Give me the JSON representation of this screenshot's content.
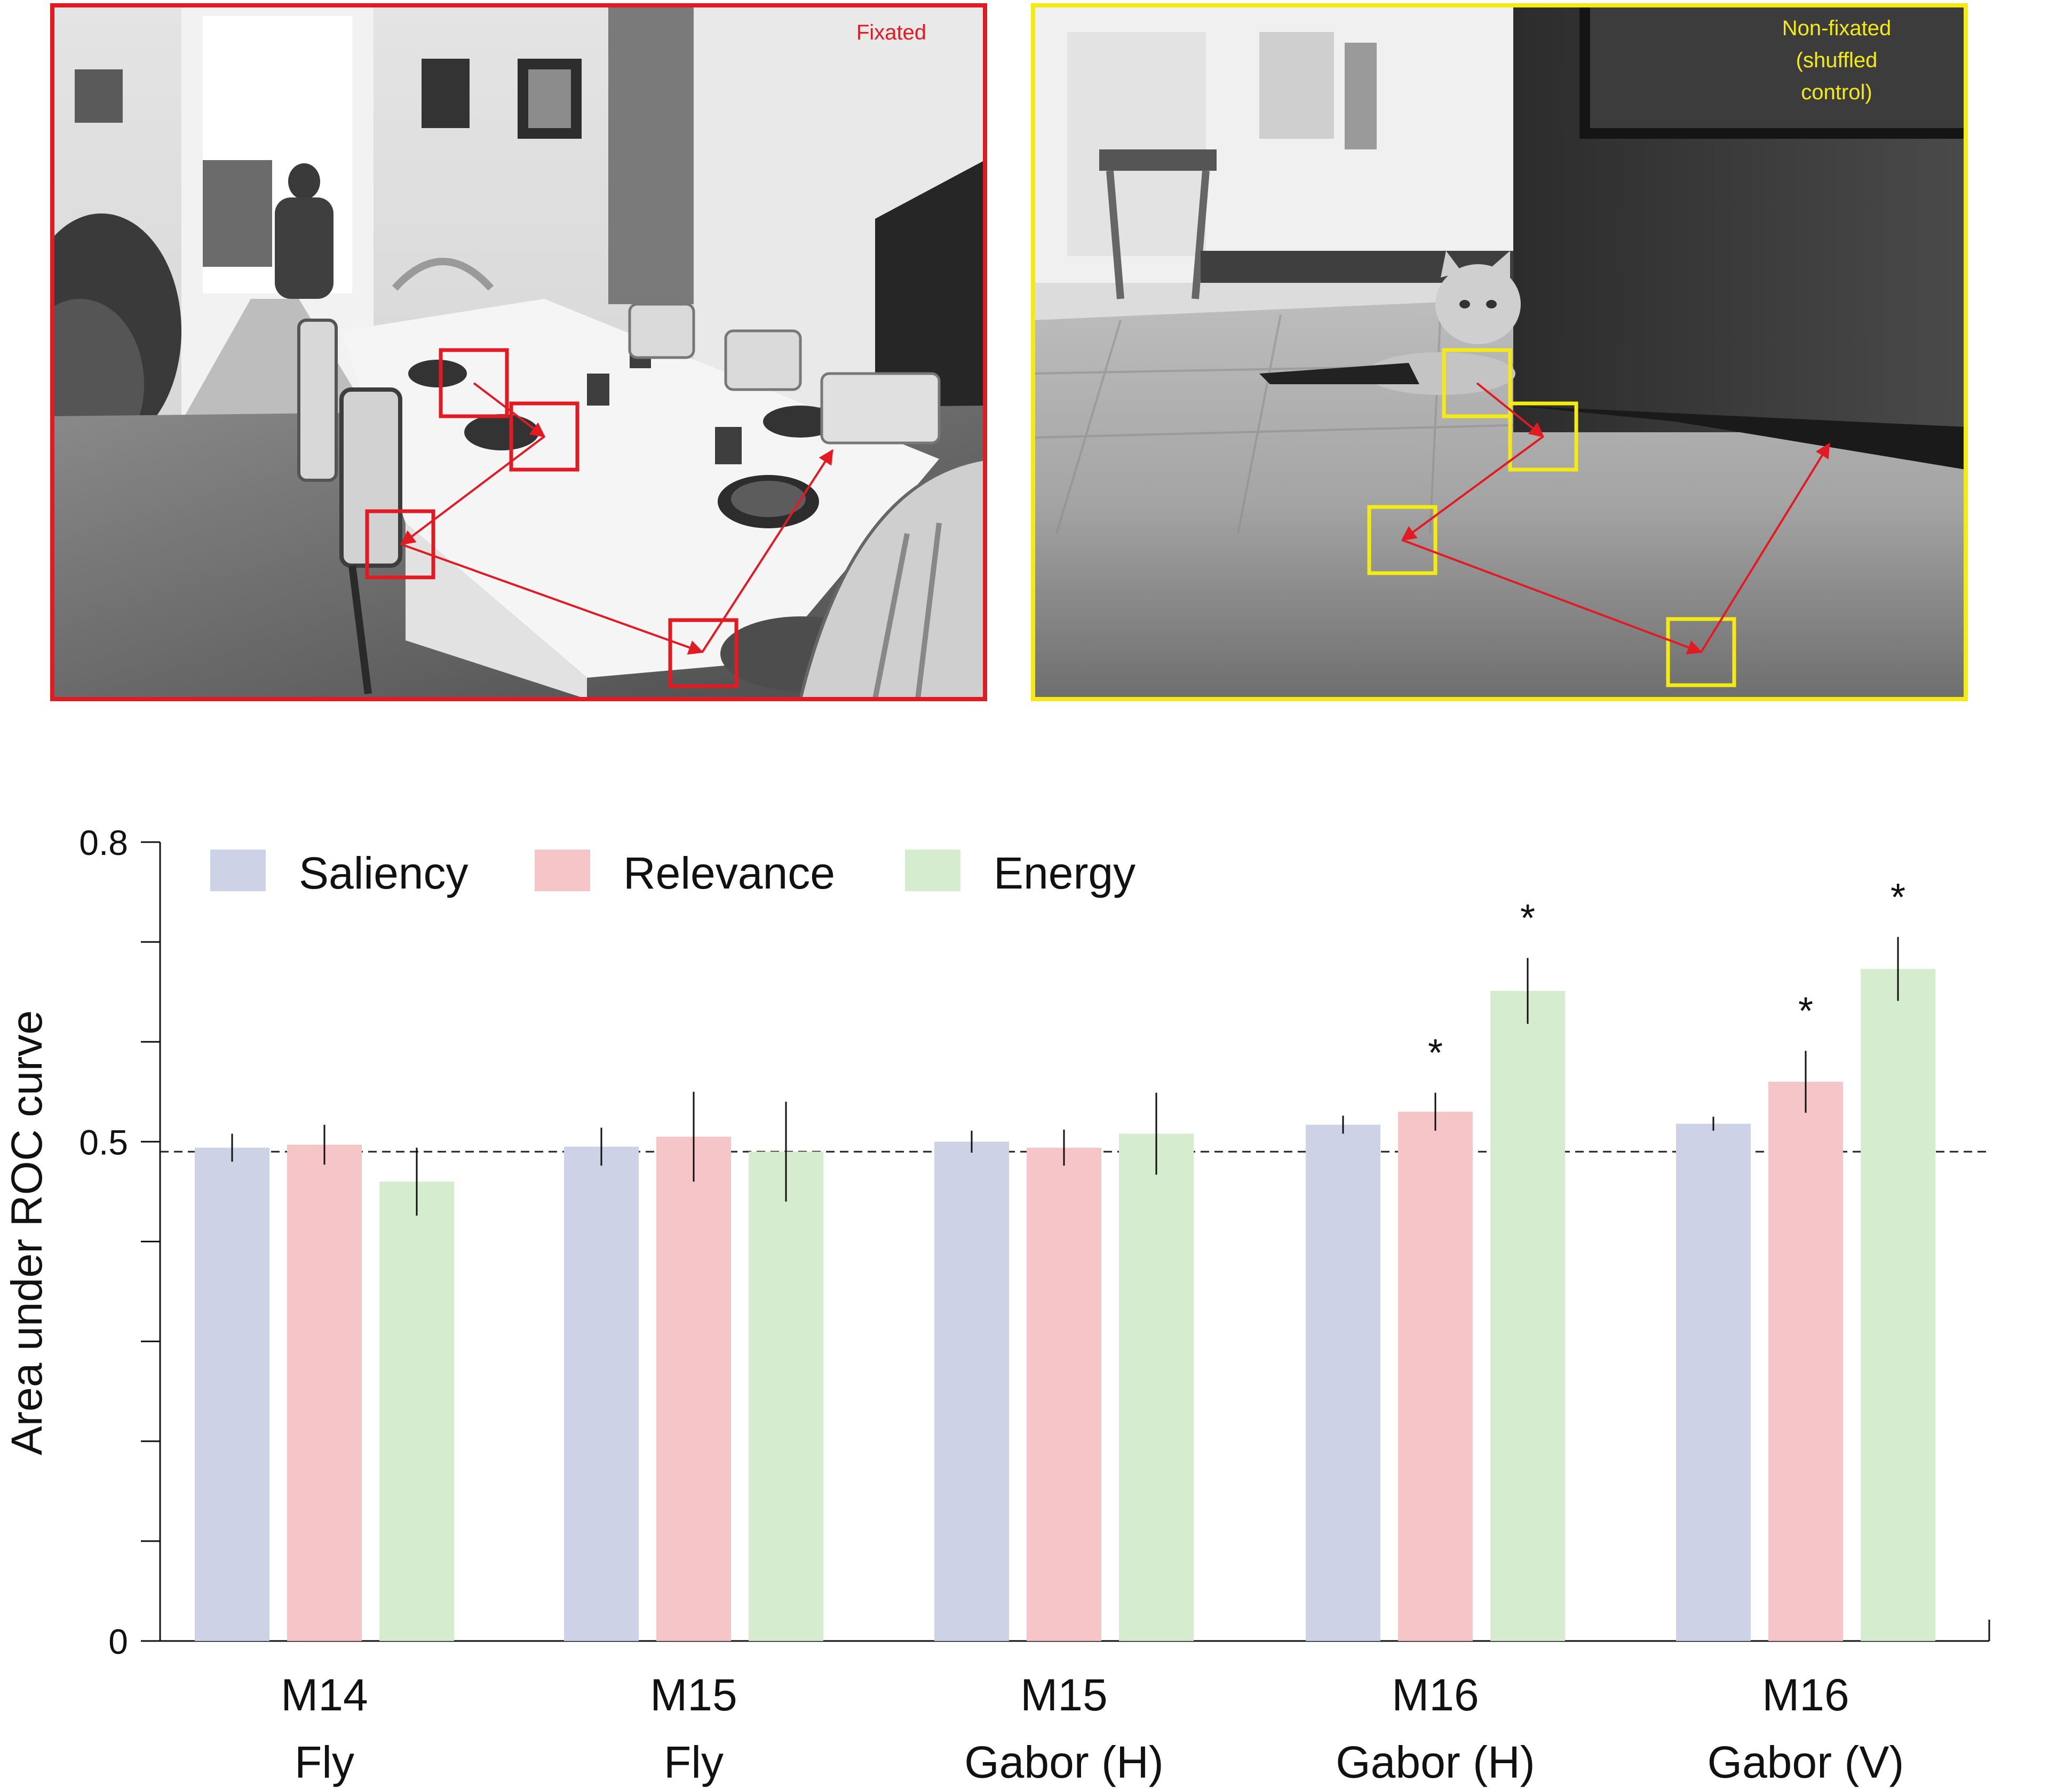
{
  "panels": [
    {
      "id": "fixated",
      "label": "Fixated",
      "border_color": "#e21b23",
      "box_color": "#e21b23",
      "scene": "dining room with set table, chairs and a man in the hallway (grayscale photo)"
    },
    {
      "id": "non_fixated",
      "label_lines": [
        "Non-fixated",
        "(shuffled",
        "control)"
      ],
      "border_color": "#f5ea14",
      "box_color": "#f5ea14",
      "scene": "kitten peeking from behind a dark wooden door on a tiled floor (grayscale photo)"
    }
  ],
  "arrow_color": "#e21b23",
  "chart_data": {
    "type": "bar",
    "ylabel": "Area under ROC curve",
    "ylim": [
      0,
      0.8
    ],
    "yticks": [
      0,
      0.1,
      0.2,
      0.3,
      0.4,
      0.5,
      0.6,
      0.7,
      0.8
    ],
    "yticklabels": {
      "0": "0",
      "0.5": "0.5",
      "0.8": "0.8"
    },
    "chance_level": 0.49,
    "categories": [
      [
        "M14",
        "Fly"
      ],
      [
        "M15",
        "Fly"
      ],
      [
        "M15",
        "Gabor (H)"
      ],
      [
        "M16",
        "Gabor (H)"
      ],
      [
        "M16",
        "Gabor (V)"
      ]
    ],
    "series": [
      {
        "name": "Saliency",
        "color": "#cdd2e6",
        "values": [
          0.494,
          0.495,
          0.5,
          0.517,
          0.518
        ],
        "errors": [
          0.014,
          0.019,
          0.011,
          0.009,
          0.007
        ],
        "significant": [
          false,
          false,
          false,
          false,
          false
        ]
      },
      {
        "name": "Relevance",
        "color": "#f6c5c7",
        "values": [
          0.497,
          0.505,
          0.494,
          0.53,
          0.56
        ],
        "errors": [
          0.02,
          0.045,
          0.018,
          0.019,
          0.031
        ],
        "significant": [
          false,
          false,
          false,
          true,
          true
        ]
      },
      {
        "name": "Energy",
        "color": "#d6ecce",
        "values": [
          0.46,
          0.49,
          0.508,
          0.651,
          0.673
        ],
        "errors": [
          0.034,
          0.05,
          0.041,
          0.033,
          0.032
        ],
        "significant": [
          false,
          false,
          false,
          true,
          true
        ]
      }
    ],
    "significance_marker": "*",
    "legend_position": "top-left",
    "grid": false
  }
}
